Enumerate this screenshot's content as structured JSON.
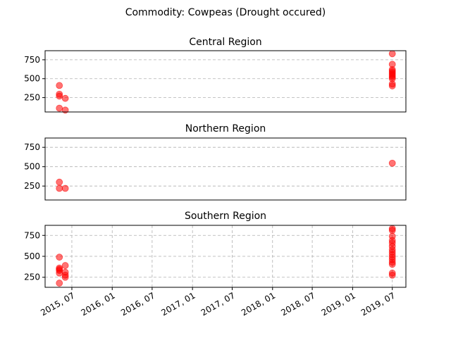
{
  "chart_data": {
    "type": "scatter",
    "title": "Commodity: Cowpeas (Drought occured)",
    "xlabel": "",
    "ylabel": "",
    "marker_color": "#ff0000",
    "grid": true,
    "shared_x": true,
    "x_range": [
      "2015-03-01",
      "2019-09-01"
    ],
    "x_ticks": [
      {
        "date": "2015-07-01",
        "label": "2015, 07"
      },
      {
        "date": "2016-01-01",
        "label": "2016, 01"
      },
      {
        "date": "2016-07-01",
        "label": "2016, 07"
      },
      {
        "date": "2017-01-01",
        "label": "2017, 01"
      },
      {
        "date": "2017-07-01",
        "label": "2017, 07"
      },
      {
        "date": "2018-01-01",
        "label": "2018, 01"
      },
      {
        "date": "2018-07-01",
        "label": "2018, 07"
      },
      {
        "date": "2019-01-01",
        "label": "2019, 01"
      },
      {
        "date": "2019-07-01",
        "label": "2019, 07"
      }
    ],
    "y_ticks": [
      250,
      500,
      750
    ],
    "panels": [
      {
        "title": "Central Region",
        "ylim": [
          60,
          870
        ],
        "points": [
          {
            "x": "2015-05-05",
            "y": 410
          },
          {
            "x": "2015-05-05",
            "y": 295
          },
          {
            "x": "2015-05-05",
            "y": 270
          },
          {
            "x": "2015-05-05",
            "y": 110
          },
          {
            "x": "2015-06-01",
            "y": 240
          },
          {
            "x": "2015-06-01",
            "y": 85
          },
          {
            "x": "2019-07-01",
            "y": 830
          },
          {
            "x": "2019-07-01",
            "y": 690
          },
          {
            "x": "2019-07-01",
            "y": 620
          },
          {
            "x": "2019-07-01",
            "y": 600
          },
          {
            "x": "2019-07-01",
            "y": 580
          },
          {
            "x": "2019-07-01",
            "y": 560
          },
          {
            "x": "2019-07-01",
            "y": 540
          },
          {
            "x": "2019-07-01",
            "y": 520
          },
          {
            "x": "2019-07-01",
            "y": 500
          },
          {
            "x": "2019-07-01",
            "y": 430
          },
          {
            "x": "2019-07-01",
            "y": 405
          }
        ]
      },
      {
        "title": "Northern Region",
        "ylim": [
          70,
          870
        ],
        "points": [
          {
            "x": "2015-05-05",
            "y": 300
          },
          {
            "x": "2015-05-05",
            "y": 220
          },
          {
            "x": "2015-06-01",
            "y": 220
          },
          {
            "x": "2019-07-01",
            "y": 545
          }
        ]
      },
      {
        "title": "Southern Region",
        "ylim": [
          130,
          870
        ],
        "points": [
          {
            "x": "2015-05-05",
            "y": 490
          },
          {
            "x": "2015-05-05",
            "y": 360
          },
          {
            "x": "2015-05-05",
            "y": 345
          },
          {
            "x": "2015-05-05",
            "y": 330
          },
          {
            "x": "2015-05-05",
            "y": 300
          },
          {
            "x": "2015-05-05",
            "y": 180
          },
          {
            "x": "2015-06-01",
            "y": 390
          },
          {
            "x": "2015-06-01",
            "y": 310
          },
          {
            "x": "2015-06-01",
            "y": 275
          },
          {
            "x": "2015-06-01",
            "y": 250
          },
          {
            "x": "2019-07-01",
            "y": 830
          },
          {
            "x": "2019-07-01",
            "y": 810
          },
          {
            "x": "2019-07-01",
            "y": 740
          },
          {
            "x": "2019-07-01",
            "y": 690
          },
          {
            "x": "2019-07-01",
            "y": 660
          },
          {
            "x": "2019-07-01",
            "y": 620
          },
          {
            "x": "2019-07-01",
            "y": 580
          },
          {
            "x": "2019-07-01",
            "y": 550
          },
          {
            "x": "2019-07-01",
            "y": 520
          },
          {
            "x": "2019-07-01",
            "y": 490
          },
          {
            "x": "2019-07-01",
            "y": 460
          },
          {
            "x": "2019-07-01",
            "y": 430
          },
          {
            "x": "2019-07-01",
            "y": 405
          },
          {
            "x": "2019-07-01",
            "y": 300
          },
          {
            "x": "2019-07-01",
            "y": 275
          }
        ]
      }
    ]
  }
}
